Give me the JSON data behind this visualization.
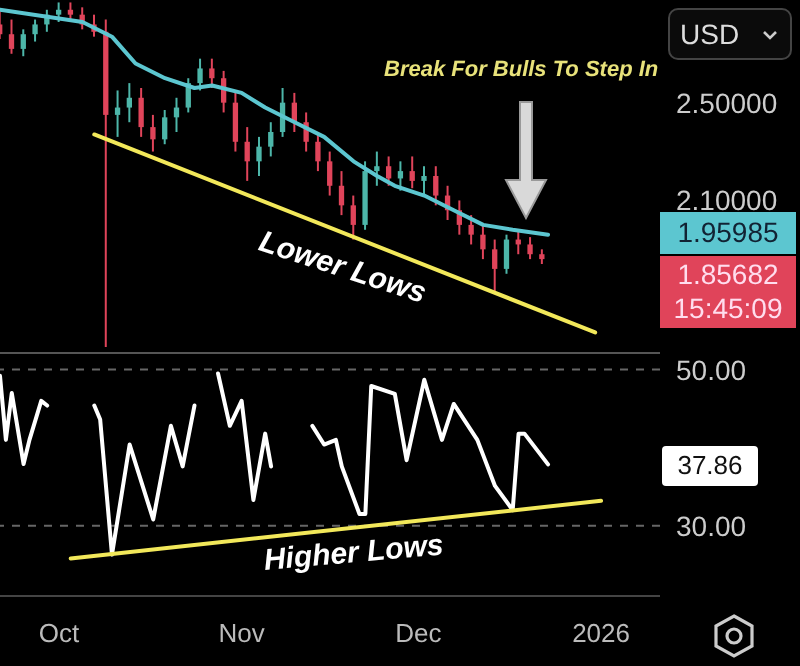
{
  "chart_data": [
    {
      "type": "candlestick",
      "x": [
        "2025-09-21",
        "2025-09-23",
        "2025-09-25",
        "2025-09-27",
        "2025-09-29",
        "2025-10-01",
        "2025-10-03",
        "2025-10-05",
        "2025-10-07",
        "2025-10-09",
        "2025-10-11",
        "2025-10-13",
        "2025-10-15",
        "2025-10-17",
        "2025-10-19",
        "2025-10-21",
        "2025-10-23",
        "2025-10-25",
        "2025-10-27",
        "2025-10-29",
        "2025-10-31",
        "2025-11-02",
        "2025-11-04",
        "2025-11-06",
        "2025-11-08",
        "2025-11-10",
        "2025-11-12",
        "2025-11-14",
        "2025-11-16",
        "2025-11-18",
        "2025-11-20",
        "2025-11-22",
        "2025-11-24",
        "2025-11-26",
        "2025-11-28",
        "2025-11-30",
        "2025-12-02",
        "2025-12-04",
        "2025-12-06",
        "2025-12-08",
        "2025-12-10",
        "2025-12-12",
        "2025-12-14",
        "2025-12-16",
        "2025-12-18",
        "2025-12-20",
        "2025-12-22"
      ],
      "ohlc": [
        [
          2.82,
          2.88,
          2.76,
          2.78
        ],
        [
          2.78,
          2.84,
          2.7,
          2.72
        ],
        [
          2.72,
          2.8,
          2.69,
          2.78
        ],
        [
          2.78,
          2.84,
          2.75,
          2.82
        ],
        [
          2.82,
          2.88,
          2.79,
          2.86
        ],
        [
          2.86,
          2.91,
          2.83,
          2.88
        ],
        [
          2.88,
          2.91,
          2.84,
          2.86
        ],
        [
          2.86,
          2.89,
          2.8,
          2.82
        ],
        [
          2.82,
          2.86,
          2.77,
          2.79
        ],
        [
          2.79,
          2.84,
          1.5,
          2.45
        ],
        [
          2.45,
          2.55,
          2.36,
          2.48
        ],
        [
          2.48,
          2.58,
          2.42,
          2.52
        ],
        [
          2.52,
          2.56,
          2.36,
          2.4
        ],
        [
          2.4,
          2.45,
          2.3,
          2.35
        ],
        [
          2.35,
          2.47,
          2.33,
          2.44
        ],
        [
          2.44,
          2.52,
          2.38,
          2.48
        ],
        [
          2.48,
          2.6,
          2.46,
          2.58
        ],
        [
          2.58,
          2.68,
          2.55,
          2.64
        ],
        [
          2.64,
          2.68,
          2.56,
          2.6
        ],
        [
          2.6,
          2.63,
          2.46,
          2.5
        ],
        [
          2.5,
          2.54,
          2.3,
          2.34
        ],
        [
          2.34,
          2.4,
          2.18,
          2.26
        ],
        [
          2.26,
          2.36,
          2.2,
          2.32
        ],
        [
          2.32,
          2.42,
          2.28,
          2.38
        ],
        [
          2.38,
          2.56,
          2.36,
          2.5
        ],
        [
          2.5,
          2.54,
          2.38,
          2.42
        ],
        [
          2.42,
          2.46,
          2.3,
          2.34
        ],
        [
          2.34,
          2.38,
          2.22,
          2.26
        ],
        [
          2.26,
          2.3,
          2.12,
          2.16
        ],
        [
          2.16,
          2.22,
          2.04,
          2.08
        ],
        [
          2.08,
          2.12,
          1.94,
          2.0
        ],
        [
          2.0,
          2.26,
          1.98,
          2.22
        ],
        [
          2.22,
          2.3,
          2.16,
          2.24
        ],
        [
          2.24,
          2.28,
          2.16,
          2.19
        ],
        [
          2.19,
          2.26,
          2.14,
          2.22
        ],
        [
          2.22,
          2.28,
          2.15,
          2.18
        ],
        [
          2.18,
          2.24,
          2.12,
          2.2
        ],
        [
          2.2,
          2.24,
          2.08,
          2.12
        ],
        [
          2.12,
          2.16,
          2.02,
          2.06
        ],
        [
          2.06,
          2.1,
          1.96,
          2.0
        ],
        [
          2.0,
          2.04,
          1.92,
          1.96
        ],
        [
          1.96,
          2.0,
          1.86,
          1.9
        ],
        [
          1.9,
          1.94,
          1.72,
          1.82
        ],
        [
          1.82,
          1.96,
          1.8,
          1.94
        ],
        [
          1.94,
          1.98,
          1.88,
          1.92
        ],
        [
          1.92,
          1.95,
          1.86,
          1.88
        ],
        [
          1.88,
          1.9,
          1.84,
          1.86
        ]
      ],
      "colors": [
        "#e0445a",
        "#e0445a",
        "#4db6a9",
        "#4db6a9",
        "#4db6a9",
        "#4db6a9",
        "#e0445a",
        "#e0445a",
        "#e0445a",
        "#e0445a",
        "#4db6a9",
        "#4db6a9",
        "#e0445a",
        "#e0445a",
        "#4db6a9",
        "#4db6a9",
        "#4db6a9",
        "#4db6a9",
        "#e0445a",
        "#e0445a",
        "#e0445a",
        "#e0445a",
        "#4db6a9",
        "#4db6a9",
        "#4db6a9",
        "#e0445a",
        "#e0445a",
        "#e0445a",
        "#e0445a",
        "#e0445a",
        "#e0445a",
        "#4db6a9",
        "#4db6a9",
        "#e0445a",
        "#4db6a9",
        "#e0445a",
        "#4db6a9",
        "#e0445a",
        "#e0445a",
        "#e0445a",
        "#e0445a",
        "#e0445a",
        "#e0445a",
        "#4db6a9",
        "#e0445a",
        "#e0445a",
        "#e0445a"
      ],
      "series": [
        {
          "type": "line",
          "color": "#5cc6d0",
          "x": [
            "2025-09-21",
            "2025-10-05",
            "2025-10-10",
            "2025-10-14",
            "2025-10-19",
            "2025-10-24",
            "2025-10-27",
            "2025-11-01",
            "2025-11-05",
            "2025-11-10",
            "2025-11-15",
            "2025-11-20",
            "2025-11-24",
            "2025-11-27",
            "2025-12-02",
            "2025-12-07",
            "2025-12-12",
            "2025-12-17",
            "2025-12-23"
          ],
          "values": [
            2.88,
            2.83,
            2.77,
            2.66,
            2.6,
            2.56,
            2.57,
            2.54,
            2.48,
            2.42,
            2.36,
            2.26,
            2.2,
            2.16,
            2.12,
            2.06,
            2.0,
            1.98,
            1.96
          ]
        },
        {
          "type": "line",
          "color": "#f2e85a",
          "x": [
            "2025-10-07",
            "2025-12-31"
          ],
          "values": [
            2.37,
            1.56
          ]
        }
      ],
      "xlim": [
        "2025-09-21",
        "2026-01-11"
      ],
      "ylim": [
        1.48,
        2.92
      ],
      "yticks": [
        {
          "value": 2.5,
          "label": "2.50000"
        },
        {
          "value": 2.1,
          "label": "2.10000"
        }
      ],
      "tick_labels": "y",
      "legend": false,
      "annotations": [
        "Break For Bulls To Step In",
        "Lower Lows",
        "1.95985",
        "1.85682",
        "15:45:09",
        "USD"
      ]
    },
    {
      "type": "line",
      "series": [
        {
          "color": "#ffffff",
          "x": [
            "2025-09-21",
            "2025-09-22",
            "2025-09-23",
            "2025-09-25",
            "2025-09-26",
            "2025-09-28",
            "2025-09-29",
            "2025-10-01",
            "2025-10-05",
            "2025-10-07",
            "2025-10-08",
            "2025-10-10",
            "2025-10-13",
            "2025-10-17",
            "2025-10-20",
            "2025-10-22",
            "2025-10-24",
            "2025-10-26",
            "2025-10-28",
            "2025-10-30",
            "2025-11-01",
            "2025-11-03",
            "2025-11-05",
            "2025-11-06",
            "2025-11-09",
            "2025-11-13",
            "2025-11-15",
            "2025-11-17",
            "2025-11-18",
            "2025-11-21",
            "2025-11-22",
            "2025-11-23",
            "2025-11-27",
            "2025-11-29",
            "2025-12-02",
            "2025-12-05",
            "2025-12-07",
            "2025-12-11",
            "2025-12-14",
            "2025-12-17",
            "2025-12-18",
            "2025-12-19",
            "2025-12-23"
          ],
          "values": [
            49.2,
            41,
            47,
            37.9,
            41,
            46,
            45.4,
            null,
            null,
            45.4,
            43.6,
            26.3,
            40.4,
            30.8,
            42.8,
            37.6,
            45.4,
            null,
            49.5,
            42.8,
            46,
            33.3,
            41.8,
            37.6,
            null,
            42.8,
            40.4,
            41,
            37.6,
            31.5,
            31.5,
            47.9,
            46.9,
            38.4,
            48.7,
            41,
            45.6,
            41,
            35.1,
            32,
            41.8,
            41.8,
            37.86
          ]
        },
        {
          "color": "#f2e85a",
          "x": [
            "2025-10-03",
            "2026-01-01"
          ],
          "values": [
            25.8,
            33.2
          ]
        }
      ],
      "xlim": [
        "2025-09-21",
        "2026-01-11"
      ],
      "xticks": [
        {
          "value": "2025-10-01",
          "label": "Oct"
        },
        {
          "value": "2025-11-01",
          "label": "Nov"
        },
        {
          "value": "2025-12-01",
          "label": "Dec"
        },
        {
          "value": "2026-01-01",
          "label": "2026"
        }
      ],
      "ylim": [
        21,
        52
      ],
      "yticks": [
        {
          "value": 30,
          "label": "30.00"
        },
        {
          "value": 50,
          "label": "50.00"
        }
      ],
      "grid": "y",
      "legend": false,
      "annotations": [
        "Higher Lows",
        "37.86"
      ]
    }
  ]
}
